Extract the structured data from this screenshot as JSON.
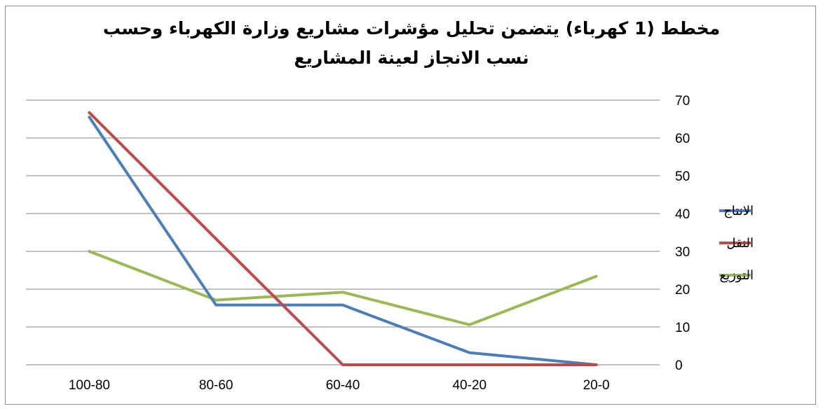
{
  "chart_data": {
    "type": "line",
    "title_lines": [
      "مخطط (1 كهرباء) يتضمن تحليل مؤشرات مشاريع وزارة الكهرباء وحسب",
      "نسب الانجاز لعينة المشاريع"
    ],
    "categories": [
      "100-80",
      "80-60",
      "60-40",
      "40-20",
      "20-0"
    ],
    "ylim": [
      0,
      70
    ],
    "yticks": [
      "0",
      "10",
      "20",
      "30",
      "40",
      "50",
      "60",
      "70"
    ],
    "y_axis_side": "right",
    "grid": true,
    "legend_position": "right",
    "series": [
      {
        "name": "الانتاج",
        "color": "#4a7ebb",
        "values": [
          65.5,
          15.8,
          15.8,
          3.2,
          0
        ]
      },
      {
        "name": "النقل",
        "color": "#be4b48",
        "values": [
          66.7,
          33.3,
          0,
          0,
          0
        ]
      },
      {
        "name": "التوزيع",
        "color": "#98b954",
        "values": [
          30,
          17.1,
          19.2,
          10.6,
          23.4
        ]
      }
    ]
  }
}
